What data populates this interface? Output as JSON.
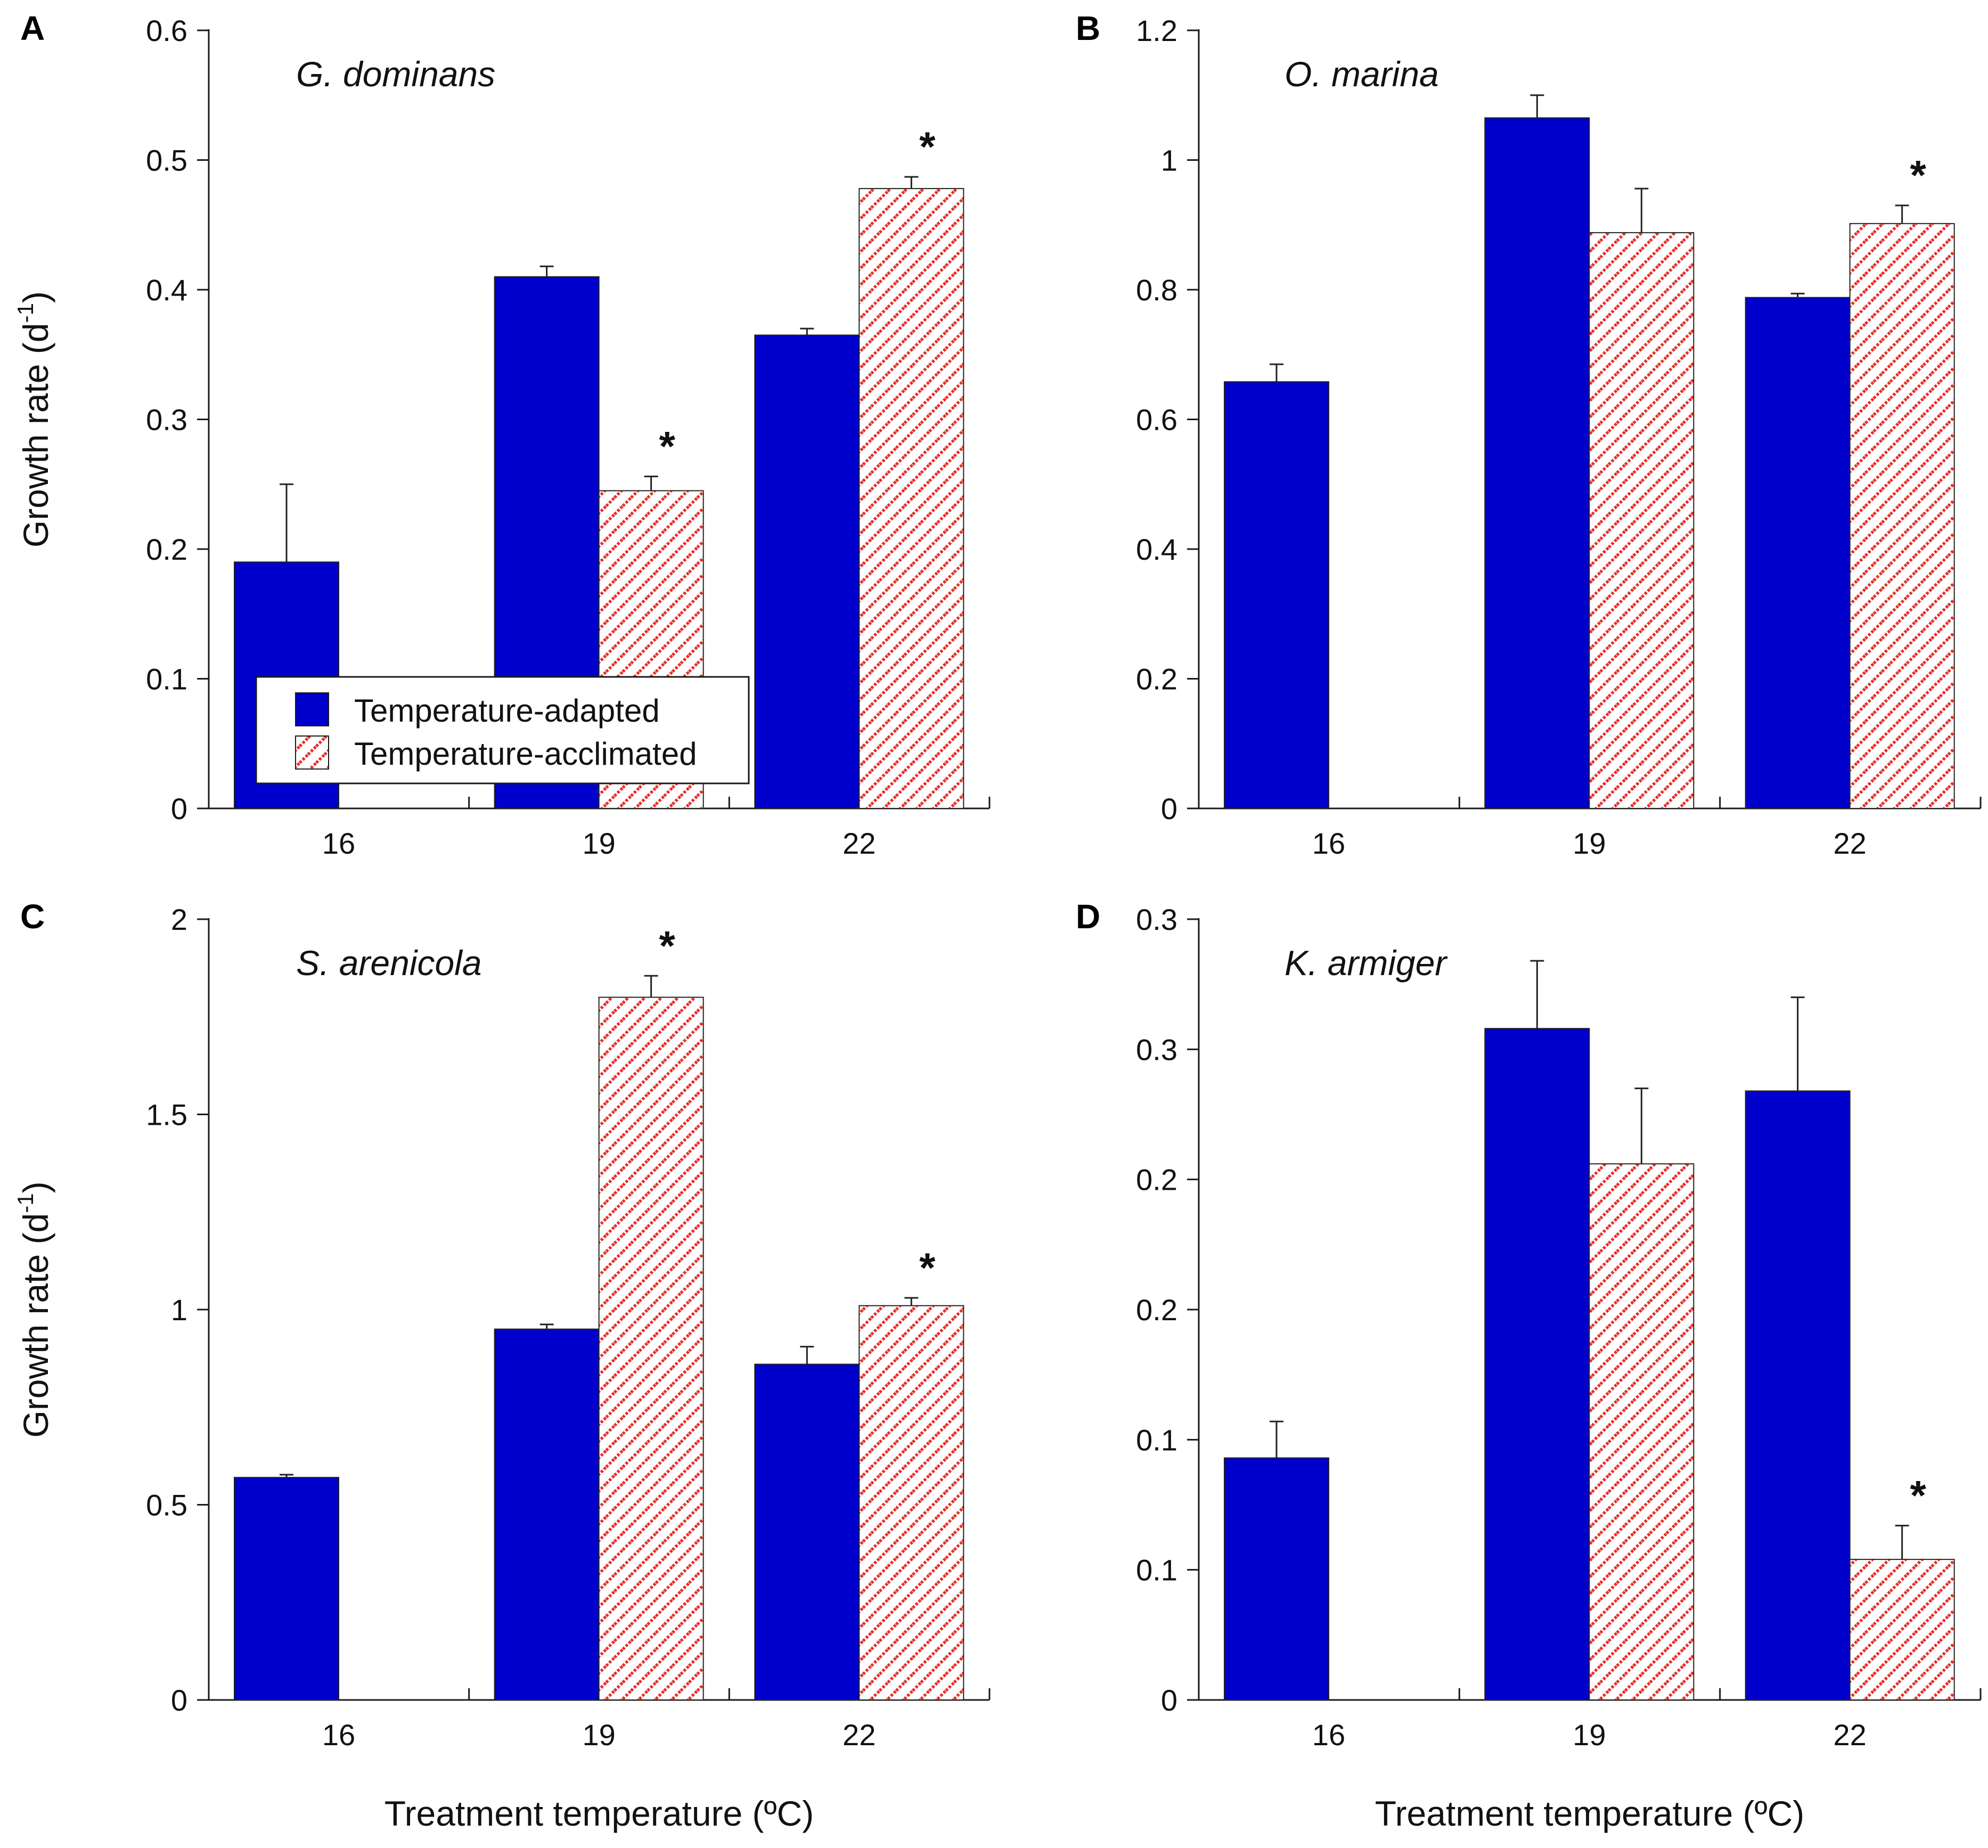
{
  "colors": {
    "adapted": "#0000cc",
    "acclimated_stripe": "#e8302a",
    "acclimated_bg": "#ffffff",
    "axis": "#1a1a1a"
  },
  "legend": {
    "adapted_label": "Temperature-adapted",
    "acclimated_label": "Temperature-acclimated"
  },
  "chart_data": [
    {
      "type": "bar",
      "panel": "A",
      "species": "G. dominans",
      "ylabel": "Growth rate (d",
      "ylabel_sup": "-1",
      "ylabel_close": ")",
      "xlabel": "",
      "categories": [
        "16",
        "19",
        "22"
      ],
      "yticks": [
        "0",
        "0.1",
        "0.2",
        "0.3",
        "0.4",
        "0.5",
        "0.6"
      ],
      "ylim": [
        0,
        0.6
      ],
      "series": [
        {
          "name": "Temperature-adapted",
          "values": [
            0.19,
            0.41,
            0.365
          ],
          "errors": [
            0.06,
            0.008,
            0.005
          ]
        },
        {
          "name": "Temperature-acclimated",
          "values": [
            null,
            0.245,
            0.478
          ],
          "errors": [
            null,
            0.011,
            0.009
          ]
        }
      ],
      "significance": [
        null,
        "*",
        "*"
      ]
    },
    {
      "type": "bar",
      "panel": "B",
      "species": "O. marina",
      "ylabel": "",
      "xlabel": "",
      "categories": [
        "16",
        "19",
        "22"
      ],
      "yticks": [
        "0",
        "0.2",
        "0.4",
        "0.6",
        "0.8",
        "1",
        "1.2"
      ],
      "ylim": [
        0,
        1.2
      ],
      "series": [
        {
          "name": "Temperature-adapted",
          "values": [
            0.658,
            1.065,
            0.788
          ],
          "errors": [
            0.027,
            0.035,
            0.006
          ]
        },
        {
          "name": "Temperature-acclimated",
          "values": [
            null,
            0.888,
            0.902
          ],
          "errors": [
            null,
            0.068,
            0.028
          ]
        }
      ],
      "significance": [
        null,
        null,
        "*"
      ]
    },
    {
      "type": "bar",
      "panel": "C",
      "species": "S. arenicola",
      "ylabel": "Growth rate (d",
      "ylabel_sup": "-1",
      "ylabel_close": ")",
      "xlabel": "Treatment temperature (ºC)",
      "categories": [
        "16",
        "19",
        "22"
      ],
      "yticks": [
        "0",
        "0.5",
        "1",
        "1.5",
        "2"
      ],
      "ylim": [
        0,
        2
      ],
      "series": [
        {
          "name": "Temperature-adapted",
          "values": [
            0.57,
            0.95,
            0.86
          ],
          "errors": [
            0.007,
            0.012,
            0.045
          ]
        },
        {
          "name": "Temperature-acclimated",
          "values": [
            null,
            1.8,
            1.01
          ],
          "errors": [
            null,
            0.055,
            0.02
          ]
        }
      ],
      "significance": [
        null,
        "*",
        "*"
      ]
    },
    {
      "type": "bar",
      "panel": "D",
      "species": "K. armiger",
      "ylabel": "",
      "xlabel": "Treatment temperature (ºC)",
      "categories": [
        "16",
        "19",
        "22"
      ],
      "yticks": [
        "0",
        "0.1",
        "0.1",
        "0.2",
        "0.2",
        "0.3",
        "0.3"
      ],
      "ylim": [
        0,
        0.3
      ],
      "series": [
        {
          "name": "Temperature-adapted",
          "values": [
            0.093,
            0.258,
            0.234
          ],
          "errors": [
            0.014,
            0.026,
            0.036
          ]
        },
        {
          "name": "Temperature-acclimated",
          "values": [
            null,
            0.206,
            0.054
          ],
          "errors": [
            null,
            0.029,
            0.013
          ]
        }
      ],
      "significance": [
        null,
        null,
        "*"
      ]
    }
  ]
}
